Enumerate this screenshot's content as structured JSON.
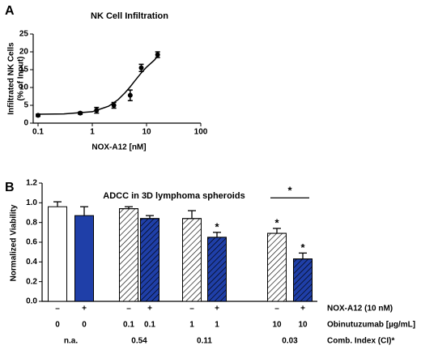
{
  "chart_data": [
    {
      "type": "line",
      "panel_label": "A",
      "title": "NK Cell Infiltration",
      "x_label": "NOX-A12 [nM]",
      "y_label": [
        "Infiltrated NK Cells",
        "(% of Input)"
      ],
      "xscale": "log",
      "xlim": [
        0.1,
        100
      ],
      "xticks": [
        0.1,
        1,
        10,
        100
      ],
      "ylim": [
        0,
        25
      ],
      "yticks": [
        0,
        5,
        10,
        15,
        20,
        25
      ],
      "series": [
        {
          "color": "#000000",
          "x": [
            0.1,
            0.6,
            1.2,
            2.5,
            5,
            8,
            16
          ],
          "values": [
            2.2,
            2.8,
            3.6,
            5.0,
            7.8,
            15.5,
            19.2
          ],
          "errors": [
            0.3,
            0.3,
            0.8,
            0.8,
            1.5,
            1.0,
            0.8
          ]
        }
      ],
      "fit": {
        "color": "#000000",
        "x": [
          0.1,
          0.3,
          1,
          2,
          3,
          4,
          5,
          6,
          8,
          10,
          14,
          16
        ],
        "values": [
          2.5,
          2.58,
          3.2,
          4.75,
          6.6,
          8.5,
          10.2,
          11.75,
          14.1,
          15.7,
          17.7,
          18.8
        ]
      }
    },
    {
      "type": "bar",
      "panel_label": "B",
      "title": "ADCC in 3D lymphoma spheroids",
      "y_label": "Normalized Viability",
      "ylim": [
        0,
        1.2
      ],
      "yticks": [
        {
          "value": 0,
          "label": "0.0"
        },
        0.2,
        0.4,
        0.6,
        0.8,
        {
          "value": 1,
          "label": "1.0"
        },
        1.2
      ],
      "values": [
        0.96,
        0.87,
        0.94,
        0.84,
        0.84,
        0.65,
        0.69,
        0.43
      ],
      "errors": [
        0.05,
        0.09,
        0.02,
        0.03,
        0.08,
        0.05,
        0.05,
        0.06
      ],
      "colors": [
        "#ffffff",
        "#1f3fa8",
        "#ffffff",
        "#1f3fa8",
        "#ffffff",
        "#1f3fa8",
        "#ffffff",
        "#1f3fa8"
      ],
      "hatch": [
        false,
        false,
        true,
        true,
        true,
        true,
        true,
        true
      ],
      "stars": [
        {
          "bar": 5,
          "text": "*"
        },
        {
          "bar": 6,
          "text": "*"
        },
        {
          "bar": 7,
          "text": "*"
        }
      ],
      "bracket": {
        "from": 6,
        "to": 7,
        "text": "*"
      },
      "table": {
        "rows": [
          {
            "label": "NOX-A12 (10 nM)",
            "cells": [
              "–",
              "+",
              "–",
              "+",
              "–",
              "+",
              "–",
              "+"
            ]
          },
          {
            "label": "Obinutuzumab [µg/mL]",
            "cells": [
              "0",
              "0",
              "0.1",
              "0.1",
              "1",
              "1",
              "10",
              "10"
            ]
          },
          {
            "label": "Comb. Index (CI)*",
            "cells": [
              "n.a.",
              "0.54",
              "0.11",
              "0.03"
            ]
          }
        ]
      }
    }
  ]
}
